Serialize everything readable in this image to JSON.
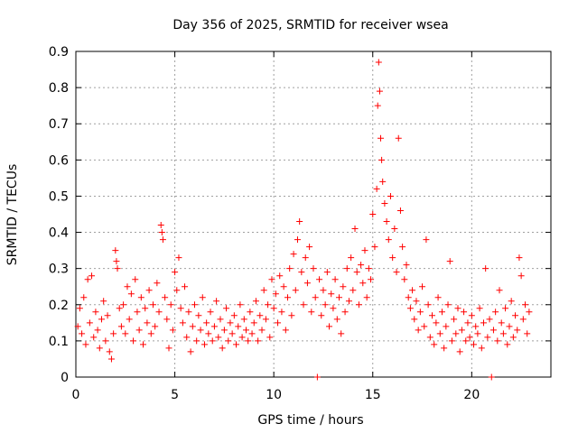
{
  "chart_data": {
    "type": "scatter",
    "title": "Day 356 of 2025, SRMTID for receiver wsea",
    "xlabel": "GPS time / hours",
    "ylabel": "SRMTID / TECUs",
    "xlim": [
      0,
      24
    ],
    "ylim": [
      0,
      0.9
    ],
    "xticks": [
      0,
      5,
      10,
      15,
      20
    ],
    "xtick_labels": [
      "0",
      "5",
      "10",
      "15",
      "20"
    ],
    "yticks": [
      0,
      0.1,
      0.2,
      0.3,
      0.4,
      0.5,
      0.6,
      0.7,
      0.8,
      0.9
    ],
    "ytick_labels": [
      "0",
      "0.1",
      "0.2",
      "0.3",
      "0.4",
      "0.5",
      "0.6",
      "0.7",
      "0.8",
      "0.9"
    ],
    "grid": true,
    "marker": "plus",
    "color": "#ff0000",
    "series": [
      {
        "name": "SRMTID",
        "points": [
          [
            0.1,
            0.14
          ],
          [
            0.2,
            0.19
          ],
          [
            0.3,
            0.12
          ],
          [
            0.4,
            0.22
          ],
          [
            0.5,
            0.09
          ],
          [
            0.6,
            0.27
          ],
          [
            0.7,
            0.15
          ],
          [
            0.8,
            0.28
          ],
          [
            0.9,
            0.11
          ],
          [
            1.0,
            0.18
          ],
          [
            1.1,
            0.13
          ],
          [
            1.2,
            0.08
          ],
          [
            1.3,
            0.16
          ],
          [
            1.4,
            0.21
          ],
          [
            1.5,
            0.1
          ],
          [
            1.6,
            0.17
          ],
          [
            1.7,
            0.07
          ],
          [
            1.8,
            0.05
          ],
          [
            1.9,
            0.12
          ],
          [
            2.0,
            0.35
          ],
          [
            2.05,
            0.32
          ],
          [
            2.1,
            0.3
          ],
          [
            2.2,
            0.19
          ],
          [
            2.3,
            0.14
          ],
          [
            2.4,
            0.2
          ],
          [
            2.5,
            0.12
          ],
          [
            2.6,
            0.25
          ],
          [
            2.7,
            0.16
          ],
          [
            2.8,
            0.23
          ],
          [
            2.9,
            0.1
          ],
          [
            3.0,
            0.27
          ],
          [
            3.1,
            0.18
          ],
          [
            3.2,
            0.13
          ],
          [
            3.3,
            0.22
          ],
          [
            3.4,
            0.09
          ],
          [
            3.5,
            0.19
          ],
          [
            3.6,
            0.15
          ],
          [
            3.7,
            0.24
          ],
          [
            3.8,
            0.12
          ],
          [
            3.9,
            0.2
          ],
          [
            4.0,
            0.14
          ],
          [
            4.1,
            0.26
          ],
          [
            4.2,
            0.18
          ],
          [
            4.3,
            0.42
          ],
          [
            4.35,
            0.4
          ],
          [
            4.4,
            0.38
          ],
          [
            4.5,
            0.22
          ],
          [
            4.6,
            0.16
          ],
          [
            4.7,
            0.08
          ],
          [
            4.8,
            0.2
          ],
          [
            4.9,
            0.13
          ],
          [
            5.0,
            0.29
          ],
          [
            5.1,
            0.24
          ],
          [
            5.2,
            0.33
          ],
          [
            5.3,
            0.19
          ],
          [
            5.4,
            0.15
          ],
          [
            5.5,
            0.25
          ],
          [
            5.6,
            0.11
          ],
          [
            5.7,
            0.18
          ],
          [
            5.8,
            0.07
          ],
          [
            5.9,
            0.14
          ],
          [
            6.0,
            0.2
          ],
          [
            6.1,
            0.1
          ],
          [
            6.2,
            0.17
          ],
          [
            6.3,
            0.13
          ],
          [
            6.4,
            0.22
          ],
          [
            6.5,
            0.09
          ],
          [
            6.6,
            0.15
          ],
          [
            6.7,
            0.12
          ],
          [
            6.8,
            0.18
          ],
          [
            6.9,
            0.1
          ],
          [
            7.0,
            0.14
          ],
          [
            7.1,
            0.21
          ],
          [
            7.2,
            0.11
          ],
          [
            7.3,
            0.16
          ],
          [
            7.4,
            0.08
          ],
          [
            7.5,
            0.13
          ],
          [
            7.6,
            0.19
          ],
          [
            7.7,
            0.1
          ],
          [
            7.8,
            0.15
          ],
          [
            7.9,
            0.12
          ],
          [
            8.0,
            0.17
          ],
          [
            8.1,
            0.09
          ],
          [
            8.2,
            0.14
          ],
          [
            8.3,
            0.2
          ],
          [
            8.4,
            0.11
          ],
          [
            8.5,
            0.16
          ],
          [
            8.6,
            0.13
          ],
          [
            8.7,
            0.1
          ],
          [
            8.8,
            0.18
          ],
          [
            8.9,
            0.12
          ],
          [
            9.0,
            0.15
          ],
          [
            9.1,
            0.21
          ],
          [
            9.2,
            0.1
          ],
          [
            9.3,
            0.17
          ],
          [
            9.4,
            0.13
          ],
          [
            9.5,
            0.24
          ],
          [
            9.6,
            0.16
          ],
          [
            9.7,
            0.2
          ],
          [
            9.8,
            0.11
          ],
          [
            9.9,
            0.27
          ],
          [
            10.0,
            0.19
          ],
          [
            10.1,
            0.23
          ],
          [
            10.2,
            0.15
          ],
          [
            10.3,
            0.28
          ],
          [
            10.4,
            0.18
          ],
          [
            10.5,
            0.25
          ],
          [
            10.6,
            0.13
          ],
          [
            10.7,
            0.22
          ],
          [
            10.8,
            0.3
          ],
          [
            10.9,
            0.17
          ],
          [
            11.0,
            0.34
          ],
          [
            11.1,
            0.24
          ],
          [
            11.2,
            0.38
          ],
          [
            11.3,
            0.43
          ],
          [
            11.4,
            0.29
          ],
          [
            11.5,
            0.2
          ],
          [
            11.6,
            0.33
          ],
          [
            11.7,
            0.26
          ],
          [
            11.8,
            0.36
          ],
          [
            11.9,
            0.18
          ],
          [
            12.0,
            0.3
          ],
          [
            12.1,
            0.22
          ],
          [
            12.2,
            0.0
          ],
          [
            12.3,
            0.27
          ],
          [
            12.4,
            0.17
          ],
          [
            12.5,
            0.24
          ],
          [
            12.6,
            0.2
          ],
          [
            12.7,
            0.29
          ],
          [
            12.8,
            0.14
          ],
          [
            12.9,
            0.23
          ],
          [
            13.0,
            0.19
          ],
          [
            13.1,
            0.27
          ],
          [
            13.2,
            0.16
          ],
          [
            13.3,
            0.22
          ],
          [
            13.4,
            0.12
          ],
          [
            13.5,
            0.25
          ],
          [
            13.6,
            0.18
          ],
          [
            13.7,
            0.3
          ],
          [
            13.8,
            0.21
          ],
          [
            13.9,
            0.33
          ],
          [
            14.0,
            0.24
          ],
          [
            14.1,
            0.41
          ],
          [
            14.2,
            0.29
          ],
          [
            14.3,
            0.2
          ],
          [
            14.4,
            0.31
          ],
          [
            14.5,
            0.26
          ],
          [
            14.6,
            0.35
          ],
          [
            14.7,
            0.22
          ],
          [
            14.8,
            0.3
          ],
          [
            14.9,
            0.27
          ],
          [
            15.0,
            0.45
          ],
          [
            15.1,
            0.36
          ],
          [
            15.2,
            0.52
          ],
          [
            15.25,
            0.75
          ],
          [
            15.3,
            0.87
          ],
          [
            15.35,
            0.79
          ],
          [
            15.4,
            0.66
          ],
          [
            15.45,
            0.6
          ],
          [
            15.5,
            0.54
          ],
          [
            15.6,
            0.48
          ],
          [
            15.7,
            0.43
          ],
          [
            15.8,
            0.38
          ],
          [
            15.9,
            0.5
          ],
          [
            16.0,
            0.33
          ],
          [
            16.1,
            0.41
          ],
          [
            16.2,
            0.29
          ],
          [
            16.3,
            0.66
          ],
          [
            16.4,
            0.46
          ],
          [
            16.5,
            0.36
          ],
          [
            16.6,
            0.27
          ],
          [
            16.7,
            0.31
          ],
          [
            16.8,
            0.22
          ],
          [
            16.9,
            0.19
          ],
          [
            17.0,
            0.24
          ],
          [
            17.1,
            0.16
          ],
          [
            17.2,
            0.21
          ],
          [
            17.3,
            0.13
          ],
          [
            17.4,
            0.18
          ],
          [
            17.5,
            0.25
          ],
          [
            17.6,
            0.14
          ],
          [
            17.7,
            0.38
          ],
          [
            17.8,
            0.2
          ],
          [
            17.9,
            0.11
          ],
          [
            18.0,
            0.17
          ],
          [
            18.1,
            0.09
          ],
          [
            18.2,
            0.15
          ],
          [
            18.3,
            0.22
          ],
          [
            18.4,
            0.12
          ],
          [
            18.5,
            0.18
          ],
          [
            18.6,
            0.08
          ],
          [
            18.7,
            0.14
          ],
          [
            18.8,
            0.2
          ],
          [
            18.9,
            0.32
          ],
          [
            19.0,
            0.1
          ],
          [
            19.1,
            0.16
          ],
          [
            19.2,
            0.12
          ],
          [
            19.3,
            0.19
          ],
          [
            19.4,
            0.07
          ],
          [
            19.5,
            0.13
          ],
          [
            19.6,
            0.18
          ],
          [
            19.7,
            0.1
          ],
          [
            19.8,
            0.15
          ],
          [
            19.9,
            0.11
          ],
          [
            20.0,
            0.17
          ],
          [
            20.1,
            0.09
          ],
          [
            20.2,
            0.14
          ],
          [
            20.3,
            0.12
          ],
          [
            20.4,
            0.19
          ],
          [
            20.5,
            0.08
          ],
          [
            20.6,
            0.15
          ],
          [
            20.7,
            0.3
          ],
          [
            20.8,
            0.11
          ],
          [
            20.9,
            0.16
          ],
          [
            21.0,
            0.0
          ],
          [
            21.1,
            0.13
          ],
          [
            21.2,
            0.18
          ],
          [
            21.3,
            0.1
          ],
          [
            21.4,
            0.24
          ],
          [
            21.5,
            0.15
          ],
          [
            21.6,
            0.12
          ],
          [
            21.7,
            0.19
          ],
          [
            21.8,
            0.09
          ],
          [
            21.9,
            0.14
          ],
          [
            22.0,
            0.21
          ],
          [
            22.1,
            0.11
          ],
          [
            22.2,
            0.17
          ],
          [
            22.3,
            0.13
          ],
          [
            22.4,
            0.33
          ],
          [
            22.5,
            0.28
          ],
          [
            22.6,
            0.16
          ],
          [
            22.7,
            0.2
          ],
          [
            22.8,
            0.12
          ],
          [
            22.9,
            0.18
          ]
        ]
      }
    ]
  }
}
